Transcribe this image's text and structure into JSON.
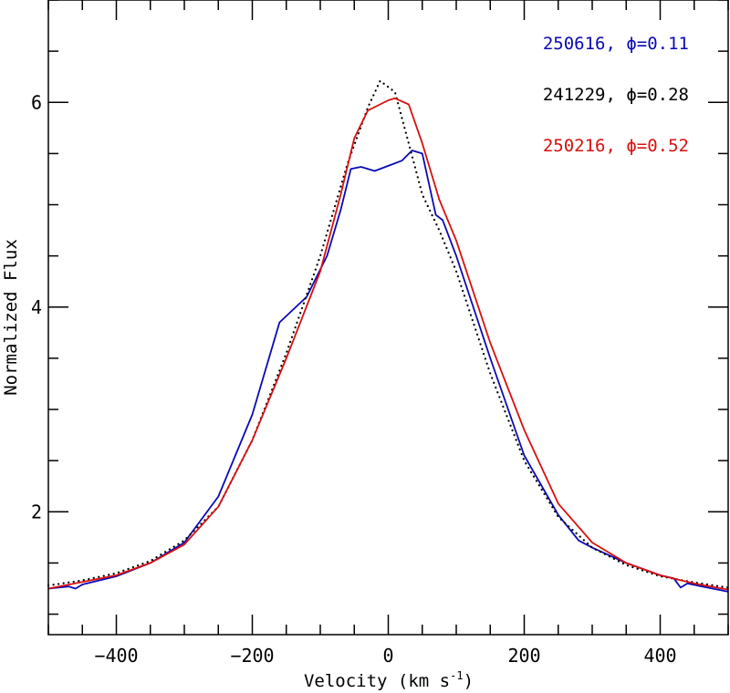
{
  "chart_data": {
    "type": "line",
    "title": "",
    "xlabel": "Velocity (km s",
    "xlabel_sup": "-1",
    "xlabel_close": ")",
    "ylabel": "Normalized Flux",
    "xlim": [
      -500,
      500
    ],
    "ylim": [
      0.8,
      7.0
    ],
    "xticks": [
      -400,
      -200,
      0,
      200,
      400
    ],
    "yticks": [
      2,
      4,
      6
    ],
    "x_minor_step": 50,
    "y_minor_step": 0.5,
    "grid": false,
    "legend_placement": "top-right",
    "series": [
      {
        "name": "250616, ϕ=0.11",
        "color": "#0a0ab4",
        "style": "solid",
        "x": [
          -500,
          -470,
          -460,
          -450,
          -400,
          -350,
          -300,
          -250,
          -200,
          -160,
          -120,
          -90,
          -70,
          -55,
          -40,
          -20,
          0,
          20,
          35,
          50,
          70,
          80,
          100,
          150,
          200,
          250,
          280,
          300,
          350,
          400,
          420,
          430,
          440,
          500
        ],
        "y": [
          1.25,
          1.27,
          1.25,
          1.29,
          1.37,
          1.5,
          1.7,
          2.15,
          2.95,
          3.85,
          4.1,
          4.5,
          4.95,
          5.35,
          5.37,
          5.33,
          5.38,
          5.43,
          5.53,
          5.5,
          4.9,
          4.85,
          4.5,
          3.5,
          2.55,
          1.97,
          1.72,
          1.65,
          1.5,
          1.38,
          1.35,
          1.26,
          1.3,
          1.22
        ]
      },
      {
        "name": "241229, ϕ=0.28",
        "color": "#000000",
        "style": "dotted",
        "x": [
          -500,
          -450,
          -400,
          -350,
          -300,
          -250,
          -200,
          -150,
          -100,
          -60,
          -30,
          -12,
          10,
          30,
          50,
          75,
          100,
          150,
          200,
          250,
          300,
          350,
          400,
          450,
          500
        ],
        "y": [
          1.28,
          1.33,
          1.4,
          1.52,
          1.72,
          2.05,
          2.7,
          3.55,
          4.5,
          5.4,
          5.95,
          6.21,
          6.1,
          5.6,
          5.1,
          4.75,
          4.35,
          3.35,
          2.5,
          1.95,
          1.65,
          1.48,
          1.37,
          1.31,
          1.26
        ]
      },
      {
        "name": "250216, ϕ=0.52",
        "color": "#d81010",
        "style": "solid",
        "x": [
          -500,
          -400,
          -350,
          -300,
          -250,
          -200,
          -150,
          -100,
          -70,
          -50,
          -30,
          0,
          10,
          30,
          50,
          75,
          100,
          150,
          200,
          250,
          300,
          350,
          400,
          450,
          500
        ],
        "y": [
          1.25,
          1.38,
          1.5,
          1.68,
          2.05,
          2.7,
          3.5,
          4.35,
          5.1,
          5.65,
          5.92,
          6.02,
          6.04,
          5.98,
          5.6,
          5.05,
          4.65,
          3.65,
          2.8,
          2.08,
          1.7,
          1.5,
          1.38,
          1.3,
          1.24
        ]
      }
    ]
  }
}
